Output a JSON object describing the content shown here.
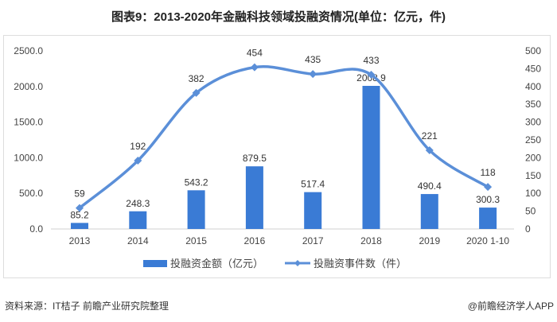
{
  "title": "图表9：2013-2020年金融科技领域投融资情况(单位：亿元，件)",
  "source": "资料来源：IT桔子 前瞻产业研究院整理",
  "brand": "@前瞻经济学人APP",
  "watermark": "前瞻产业研究院",
  "chart_data": {
    "type": "bar+line",
    "categories": [
      "2013",
      "2014",
      "2015",
      "2016",
      "2017",
      "2018",
      "2019",
      "2020 1-10"
    ],
    "series": [
      {
        "name": "投融资金额（亿元）",
        "type": "bar",
        "axis": "left",
        "values": [
          85.2,
          248.3,
          543.2,
          879.5,
          517.4,
          2008.9,
          490.4,
          300.3
        ],
        "color": "#3a7bd5"
      },
      {
        "name": "投融资事件数（件）",
        "type": "line",
        "axis": "right",
        "values": [
          59,
          192,
          382,
          454,
          435,
          433,
          221,
          118
        ],
        "color": "#5b8fd8"
      }
    ],
    "y_left": {
      "range": [
        0,
        2500
      ],
      "ticks": [
        "0.0",
        "500.0",
        "1000.0",
        "1500.0",
        "2000.0",
        "2500.0"
      ]
    },
    "y_right": {
      "range": [
        0,
        500
      ],
      "ticks": [
        "0",
        "50",
        "100",
        "150",
        "200",
        "250",
        "300",
        "350",
        "400",
        "450",
        "500"
      ]
    },
    "grid": false,
    "legend": "bottom"
  }
}
